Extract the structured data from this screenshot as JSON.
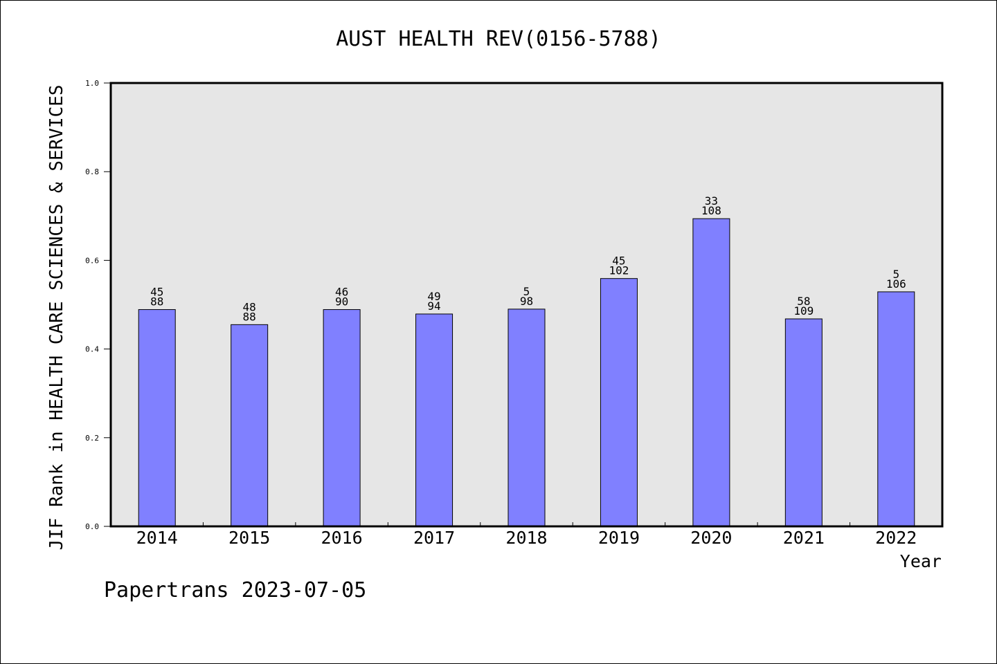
{
  "chart_data": {
    "type": "bar",
    "title": "AUST HEALTH REV(0156-5788)",
    "xlabel": "Year",
    "ylabel": "JIF Rank in HEALTH CARE SCIENCES & SERVICES",
    "ylim": [
      0,
      1.0
    ],
    "yticks": [
      "0.0",
      "0.2",
      "0.4",
      "0.6",
      "0.8",
      "1.0"
    ],
    "grid": false,
    "categories": [
      "2014",
      "2015",
      "2016",
      "2017",
      "2018",
      "2019",
      "2020",
      "2021",
      "2022"
    ],
    "values": [
      0.489,
      0.455,
      0.489,
      0.479,
      0.49,
      0.559,
      0.694,
      0.468,
      0.529
    ],
    "label_top": [
      "45",
      "48",
      "46",
      "49",
      "5",
      "45",
      "33",
      "58",
      "5"
    ],
    "label_bottom": [
      "88",
      "88",
      "90",
      "94",
      "98",
      "102",
      "108",
      "109",
      "106"
    ],
    "colors": {
      "bar": "#8080ff",
      "plot_bg": "#e6e6e6"
    }
  },
  "footer": "Papertrans 2023-07-05"
}
